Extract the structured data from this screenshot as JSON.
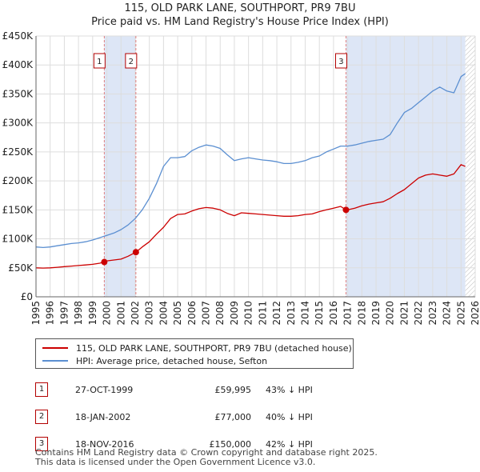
{
  "title": {
    "line1": "115, OLD PARK LANE, SOUTHPORT, PR9 7BU",
    "line2": "Price paid vs. HM Land Registry's House Price Index (HPI)"
  },
  "legend": {
    "property": "115, OLD PARK LANE, SOUTHPORT, PR9 7BU (detached house)",
    "hpi": "HPI: Average price, detached house, Sefton"
  },
  "sales": [
    {
      "num": "1",
      "date": "27-OCT-1999",
      "price": "£59,995",
      "hpi_diff": "43% ↓ HPI"
    },
    {
      "num": "2",
      "date": "18-JAN-2002",
      "price": "£77,000",
      "hpi_diff": "40% ↓ HPI"
    },
    {
      "num": "3",
      "date": "18-NOV-2016",
      "price": "£150,000",
      "hpi_diff": "42% ↓ HPI"
    }
  ],
  "footer": {
    "line1": "Contains HM Land Registry data © Crown copyright and database right 2025.",
    "line2": "This data is licensed under the Open Government Licence v3.0."
  },
  "colors": {
    "property_line": "#cc0000",
    "hpi_line": "#5b8fd1",
    "shade": "#dde6f6",
    "grid": "#dddddd",
    "marker_line": "#e08080"
  },
  "chart_data": {
    "type": "line",
    "xlim": [
      1995,
      2026
    ],
    "ylim": [
      0,
      450000
    ],
    "x_ticks": [
      1995,
      1996,
      1997,
      1998,
      1999,
      2000,
      2001,
      2002,
      2003,
      2004,
      2005,
      2006,
      2007,
      2008,
      2009,
      2010,
      2011,
      2012,
      2013,
      2014,
      2015,
      2016,
      2017,
      2018,
      2019,
      2020,
      2021,
      2022,
      2023,
      2024,
      2025,
      2026
    ],
    "y_ticks": [
      {
        "value": 0,
        "label": "£0"
      },
      {
        "value": 50000,
        "label": "£50K"
      },
      {
        "value": 100000,
        "label": "£100K"
      },
      {
        "value": 150000,
        "label": "£150K"
      },
      {
        "value": 200000,
        "label": "£200K"
      },
      {
        "value": 250000,
        "label": "£250K"
      },
      {
        "value": 300000,
        "label": "£300K"
      },
      {
        "value": 350000,
        "label": "£350K"
      },
      {
        "value": 400000,
        "label": "£400K"
      },
      {
        "value": 450000,
        "label": "£450K"
      }
    ],
    "shaded_ranges": [
      [
        1999.82,
        2002.05
      ],
      [
        2016.88,
        2025.3
      ]
    ],
    "hatched_range": [
      2025.3,
      2026
    ],
    "sale_markers": [
      {
        "label": "1",
        "x": 1999.82,
        "y": 59995
      },
      {
        "label": "2",
        "x": 2002.05,
        "y": 77000
      },
      {
        "label": "3",
        "x": 2016.88,
        "y": 150000
      }
    ],
    "series": [
      {
        "name": "HPI: Average price, detached house, Sefton",
        "x": [
          1995,
          1995.5,
          1996,
          1996.5,
          1997,
          1997.5,
          1998,
          1998.5,
          1999,
          1999.5,
          2000,
          2000.5,
          2001,
          2001.5,
          2002,
          2002.5,
          2003,
          2003.5,
          2004,
          2004.5,
          2005,
          2005.5,
          2006,
          2006.5,
          2007,
          2007.5,
          2008,
          2008.5,
          2009,
          2009.5,
          2010,
          2010.5,
          2011,
          2011.5,
          2012,
          2012.5,
          2013,
          2013.5,
          2014,
          2014.5,
          2015,
          2015.5,
          2016,
          2016.5,
          2017,
          2017.5,
          2018,
          2018.5,
          2019,
          2019.5,
          2020,
          2020.5,
          2021,
          2021.5,
          2022,
          2022.5,
          2023,
          2023.5,
          2024,
          2024.5,
          2025,
          2025.3
        ],
        "values": [
          86000,
          85000,
          86000,
          88000,
          90000,
          92000,
          93000,
          95000,
          98000,
          102000,
          106000,
          110000,
          116000,
          124000,
          135000,
          150000,
          170000,
          195000,
          225000,
          240000,
          240000,
          242000,
          252000,
          258000,
          262000,
          260000,
          256000,
          245000,
          235000,
          238000,
          240000,
          238000,
          236000,
          235000,
          233000,
          230000,
          230000,
          232000,
          235000,
          240000,
          243000,
          250000,
          255000,
          260000,
          260000,
          262000,
          265000,
          268000,
          270000,
          272000,
          280000,
          300000,
          318000,
          325000,
          335000,
          345000,
          355000,
          362000,
          355000,
          352000,
          380000,
          385000
        ]
      },
      {
        "name": "115, OLD PARK LANE, SOUTHPORT, PR9 7BU (detached house)",
        "x": [
          1995,
          1995.5,
          1996,
          1996.5,
          1997,
          1997.5,
          1998,
          1998.5,
          1999,
          1999.5,
          1999.82,
          2000,
          2000.5,
          2001,
          2001.5,
          2002.05,
          2002.5,
          2003,
          2003.5,
          2004,
          2004.5,
          2005,
          2005.5,
          2006,
          2006.5,
          2007,
          2007.5,
          2008,
          2008.5,
          2009,
          2009.5,
          2010,
          2010.5,
          2011,
          2011.5,
          2012,
          2012.5,
          2013,
          2013.5,
          2014,
          2014.5,
          2015,
          2015.5,
          2016,
          2016.5,
          2016.88,
          2017,
          2017.5,
          2018,
          2018.5,
          2019,
          2019.5,
          2020,
          2020.5,
          2021,
          2021.5,
          2022,
          2022.5,
          2023,
          2023.5,
          2024,
          2024.5,
          2025,
          2025.3
        ],
        "values": [
          50000,
          49500,
          50000,
          51000,
          52000,
          53000,
          54000,
          55000,
          56000,
          58000,
          59995,
          62000,
          63500,
          65000,
          70000,
          77000,
          86000,
          95000,
          108000,
          120000,
          135000,
          142000,
          143000,
          148000,
          152000,
          154000,
          153000,
          150000,
          144000,
          140000,
          145000,
          144000,
          143000,
          142000,
          141000,
          140000,
          139000,
          139000,
          140000,
          142000,
          143000,
          147000,
          150000,
          153000,
          156000,
          150000,
          150000,
          153000,
          157000,
          160000,
          162000,
          164000,
          170000,
          178000,
          185000,
          195000,
          205000,
          210000,
          212000,
          210000,
          208000,
          212000,
          228000,
          225000
        ]
      }
    ]
  }
}
